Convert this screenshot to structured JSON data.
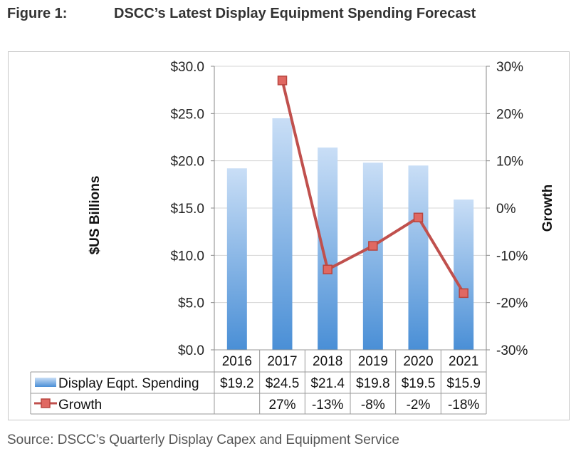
{
  "figure": {
    "label": "Figure 1:",
    "title": "DSCC’s Latest Display Equipment Spending Forecast"
  },
  "source": "Source: DSCC’s Quarterly Display Capex and Equipment Service",
  "chart_data": {
    "type": "bar",
    "categories": [
      "2016",
      "2017",
      "2018",
      "2019",
      "2020",
      "2021"
    ],
    "series": [
      {
        "name": "Display Eqpt. Spending",
        "type": "bar",
        "axis": "left",
        "values": [
          19.2,
          24.5,
          21.4,
          19.8,
          19.5,
          15.9
        ],
        "labels": [
          "$19.2",
          "$24.5",
          "$21.4",
          "$19.8",
          "$19.5",
          "$15.9"
        ],
        "color": "#5b9bd5"
      },
      {
        "name": "Growth",
        "type": "line",
        "axis": "right",
        "values": [
          null,
          27,
          -13,
          -8,
          -2,
          -18
        ],
        "labels": [
          "",
          "27%",
          "-13%",
          "-8%",
          "-2%",
          "-18%"
        ],
        "color": "#c0504d"
      }
    ],
    "ylabel": "$US Billions",
    "y2label": "Growth",
    "ylim": [
      0,
      30
    ],
    "y2lim": [
      -30,
      30
    ],
    "yticks": [
      "$0.0",
      "$5.0",
      "$10.0",
      "$15.0",
      "$20.0",
      "$25.0",
      "$30.0"
    ],
    "y2ticks": [
      "-30%",
      "-20%",
      "-10%",
      "0%",
      "10%",
      "20%",
      "30%"
    ],
    "grid": true,
    "legend": "data-table"
  }
}
